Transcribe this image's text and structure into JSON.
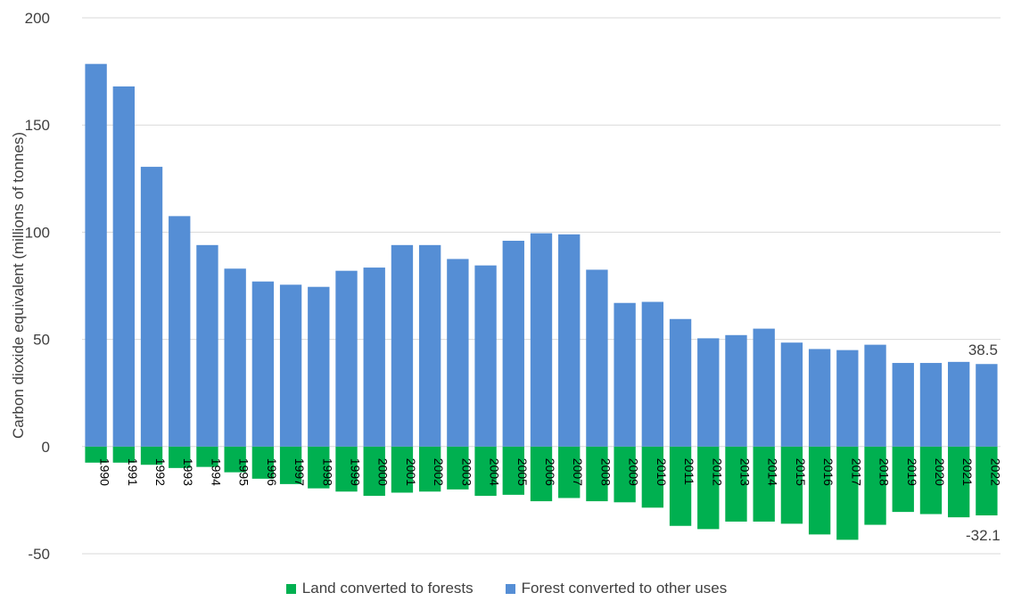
{
  "chart_data": {
    "type": "bar",
    "stacked": true,
    "title": "",
    "xlabel": "",
    "ylabel": "Carbon dioxide equivalent (millions of tonnes)",
    "ylim": [
      -50,
      200
    ],
    "yticks": [
      200,
      150,
      100,
      50,
      0,
      -50
    ],
    "grid": true,
    "legend_position": "bottom",
    "categories": [
      "1990",
      "1991",
      "1992",
      "1993",
      "1994",
      "1995",
      "1996",
      "1997",
      "1998",
      "1999",
      "2000",
      "2001",
      "2002",
      "2003",
      "2004",
      "2005",
      "2006",
      "2007",
      "2008",
      "2009",
      "2010",
      "2011",
      "2012",
      "2013",
      "2014",
      "2015",
      "2016",
      "2017",
      "2018",
      "2019",
      "2020",
      "2021",
      "2022"
    ],
    "series": [
      {
        "name": "Land converted to forests",
        "color": "#00b050",
        "values": [
          -7.5,
          -7.5,
          -8.5,
          -10,
          -9.5,
          -12,
          -15,
          -17.5,
          -19.5,
          -21,
          -23,
          -21.5,
          -21,
          -20,
          -23,
          -22.5,
          -25.5,
          -24,
          -25.5,
          -26,
          -28.5,
          -37,
          -38.5,
          -35,
          -35,
          -36,
          -41,
          -43.5,
          -36.5,
          -30.5,
          -31.5,
          -33,
          -32.1
        ]
      },
      {
        "name": "Forest converted to other uses",
        "color": "#558ed5",
        "values": [
          178.5,
          168,
          130.5,
          107.5,
          94,
          83,
          77,
          75.5,
          74.5,
          82,
          83.5,
          94,
          94,
          87.5,
          84.5,
          96,
          99.5,
          99,
          82.5,
          67,
          67.5,
          59.5,
          50.5,
          52,
          55,
          48.5,
          45.5,
          45,
          47.5,
          39,
          39,
          39.5,
          38.5
        ]
      }
    ],
    "annotations": [
      {
        "text": "38.5",
        "series": "Forest converted to other uses",
        "category": "2022"
      },
      {
        "text": "-32.1",
        "series": "Land converted to forests",
        "category": "2022"
      }
    ]
  }
}
